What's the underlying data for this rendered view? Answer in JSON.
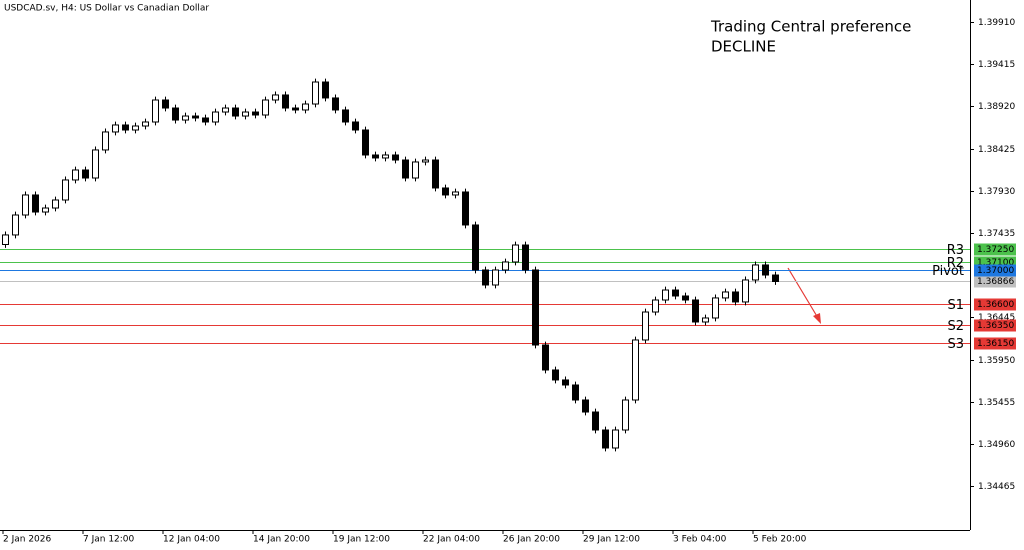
{
  "chart_data": {
    "type": "candlestick",
    "title": "USDCAD.sv, H4:  US Dollar vs Canadian Dollar",
    "annotation": [
      "Trading Central preference",
      "DECLINE"
    ],
    "categories": [
      "2 Jan 2026",
      null,
      null,
      null,
      null,
      null,
      null,
      null,
      "7 Jan 12:00",
      null,
      null,
      null,
      null,
      null,
      null,
      null,
      "12 Jan 04:00",
      null,
      null,
      null,
      null,
      null,
      null,
      null,
      null,
      "14 Jan 20:00",
      null,
      null,
      null,
      null,
      null,
      null,
      null,
      "19 Jan 12:00",
      null,
      null,
      null,
      null,
      null,
      null,
      null,
      null,
      "22 Jan 04:00",
      null,
      null,
      null,
      null,
      null,
      null,
      null,
      "26 Jan 20:00",
      null,
      null,
      null,
      null,
      null,
      null,
      null,
      "29 Jan 12:00",
      null,
      null,
      null,
      null,
      null,
      null,
      null,
      null,
      "3 Feb 04:00",
      null,
      null,
      null,
      null,
      null,
      null,
      null,
      "5 Feb 20:00",
      null,
      null
    ],
    "open": [
      1.373,
      1.37412,
      1.37646,
      1.37881,
      1.37681,
      1.37728,
      1.37822,
      1.38057,
      1.38174,
      1.3808,
      1.38409,
      1.3862,
      1.38702,
      1.38643,
      1.3869,
      1.38737,
      1.38995,
      1.38901,
      1.3876,
      1.38807,
      1.38784,
      1.38737,
      1.38854,
      1.38901,
      1.38807,
      1.38854,
      1.38819,
      1.38995,
      1.39054,
      1.38901,
      1.38878,
      1.38948,
      1.39206,
      1.39019,
      1.38878,
      1.38737,
      1.38643,
      1.3835,
      1.38315,
      1.3835,
      1.38291,
      1.3808,
      1.38268,
      1.38291,
      1.37963,
      1.37881,
      1.37916,
      1.37529,
      1.37001,
      1.36825,
      1.37001,
      1.37095,
      1.37294,
      1.37001,
      1.36121,
      1.35828,
      1.35711,
      1.35652,
      1.35476,
      1.35335,
      1.35124,
      1.34913,
      1.35124,
      1.35476,
      1.3618,
      1.36508,
      1.36649,
      1.36766,
      1.36696,
      1.36649,
      1.36391,
      1.36438,
      1.36673,
      1.36743,
      1.36626,
      1.36884,
      1.3706,
      1.36942
    ],
    "high": [
      1.37452,
      1.37686,
      1.37921,
      1.37921,
      1.37768,
      1.37862,
      1.38097,
      1.38214,
      1.38214,
      1.38449,
      1.3866,
      1.38742,
      1.38742,
      1.3873,
      1.38777,
      1.39035,
      1.39035,
      1.38941,
      1.38847,
      1.38847,
      1.38824,
      1.38894,
      1.38941,
      1.38941,
      1.38894,
      1.38894,
      1.39035,
      1.39094,
      1.39094,
      1.38941,
      1.38988,
      1.39246,
      1.39246,
      1.39059,
      1.38918,
      1.38777,
      1.38683,
      1.3839,
      1.3839,
      1.3839,
      1.38331,
      1.38308,
      1.38331,
      1.38331,
      1.38003,
      1.37956,
      1.37956,
      1.37569,
      1.37041,
      1.37041,
      1.37135,
      1.37334,
      1.37334,
      1.37041,
      1.36161,
      1.35868,
      1.35751,
      1.35692,
      1.35516,
      1.35375,
      1.35164,
      1.35164,
      1.35516,
      1.3622,
      1.36548,
      1.36689,
      1.36806,
      1.36806,
      1.36736,
      1.36689,
      1.36478,
      1.36713,
      1.36783,
      1.36783,
      1.36924,
      1.371,
      1.371,
      1.36982
    ],
    "low": [
      1.3726,
      1.37372,
      1.37606,
      1.37641,
      1.37641,
      1.37688,
      1.37782,
      1.38017,
      1.3804,
      1.3804,
      1.38369,
      1.3858,
      1.38603,
      1.38603,
      1.3865,
      1.38697,
      1.38861,
      1.3872,
      1.3872,
      1.38744,
      1.38697,
      1.38697,
      1.38814,
      1.38767,
      1.38767,
      1.38779,
      1.38779,
      1.38955,
      1.38861,
      1.38838,
      1.38838,
      1.38908,
      1.38979,
      1.38838,
      1.38697,
      1.38603,
      1.3831,
      1.38275,
      1.38275,
      1.38251,
      1.3804,
      1.3804,
      1.38228,
      1.37923,
      1.37841,
      1.37841,
      1.37489,
      1.36961,
      1.36785,
      1.36785,
      1.36961,
      1.37055,
      1.36961,
      1.36081,
      1.35788,
      1.35671,
      1.35612,
      1.35436,
      1.35295,
      1.35084,
      1.34873,
      1.34873,
      1.35084,
      1.35436,
      1.3614,
      1.36468,
      1.36609,
      1.36656,
      1.36609,
      1.36351,
      1.36351,
      1.36398,
      1.36633,
      1.36586,
      1.36586,
      1.36844,
      1.36902,
      1.36826
    ],
    "close": [
      1.37412,
      1.37646,
      1.37881,
      1.37681,
      1.37728,
      1.37822,
      1.38057,
      1.38174,
      1.3808,
      1.38409,
      1.3862,
      1.38702,
      1.38643,
      1.3869,
      1.38737,
      1.38995,
      1.38901,
      1.3876,
      1.38807,
      1.38784,
      1.38737,
      1.38854,
      1.38901,
      1.38807,
      1.38854,
      1.38819,
      1.38995,
      1.39054,
      1.38901,
      1.38878,
      1.38948,
      1.39206,
      1.39019,
      1.38878,
      1.38737,
      1.38643,
      1.3835,
      1.38315,
      1.3835,
      1.38291,
      1.3808,
      1.38268,
      1.38291,
      1.37963,
      1.37881,
      1.37916,
      1.37529,
      1.37001,
      1.36825,
      1.37001,
      1.37095,
      1.37294,
      1.37001,
      1.36121,
      1.35828,
      1.35711,
      1.35652,
      1.35476,
      1.35335,
      1.35124,
      1.34913,
      1.35124,
      1.35476,
      1.3618,
      1.36508,
      1.36649,
      1.36766,
      1.36696,
      1.36649,
      1.36391,
      1.36438,
      1.36673,
      1.36743,
      1.36626,
      1.36884,
      1.3706,
      1.36942,
      1.36866
    ],
    "ylim": [
      1.33951,
      1.40168
    ],
    "yticks": [
      {
        "value": 1.3991,
        "label": "1.39910"
      },
      1.39415,
      {
        "value": 1.3892,
        "label": "1.38920"
      },
      1.38425,
      {
        "value": 1.3793,
        "label": "1.37930"
      },
      1.37435,
      1.36445,
      {
        "value": 1.3595,
        "label": "1.35950"
      },
      1.35455,
      {
        "value": 1.3496,
        "label": "1.34960"
      },
      1.34465
    ],
    "levels": [
      {
        "name": "R3",
        "value": 1.3725,
        "label": "1.37250",
        "color": "#4cc24c"
      },
      {
        "name": "R2",
        "value": 1.371,
        "label": "1.37100",
        "color": "#4cc24c"
      },
      {
        "name": "Pivot",
        "value": 1.37,
        "label": "1.37000",
        "color": "#1e78e0"
      },
      {
        "name": "S1",
        "value": 1.366,
        "label": "1.36600",
        "color": "#e53935"
      },
      {
        "name": "S2",
        "value": 1.3635,
        "label": "1.36350",
        "color": "#e53935"
      },
      {
        "name": "S3",
        "value": 1.3615,
        "label": "1.36150",
        "color": "#e53935"
      }
    ],
    "current_price": 1.36866,
    "current_color": "#c0c0c0",
    "annotation_color": "#e53935"
  }
}
